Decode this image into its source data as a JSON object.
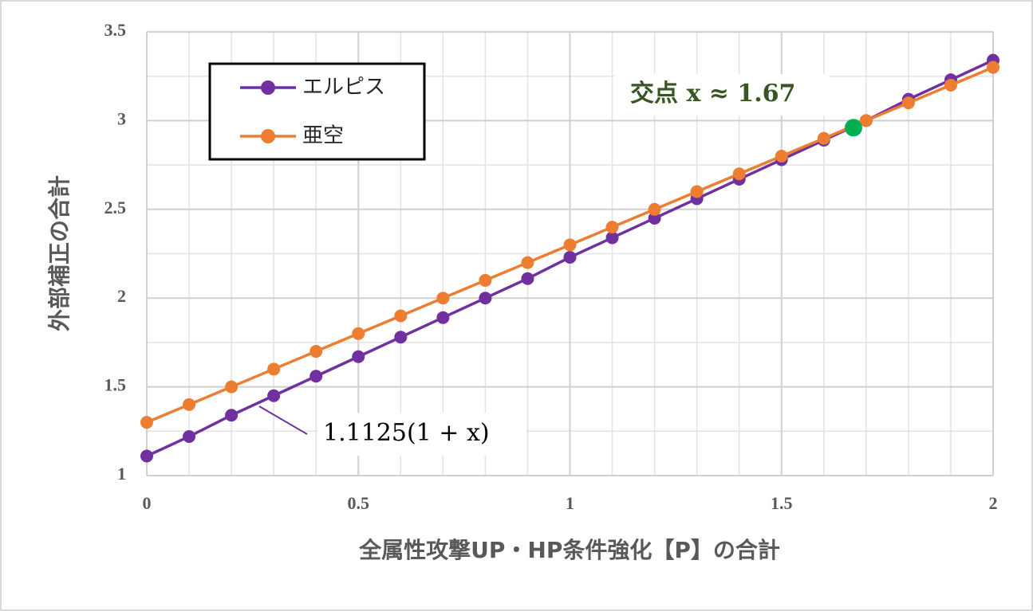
{
  "chart_data": {
    "type": "line",
    "x": [
      0,
      0.1,
      0.2,
      0.3,
      0.4,
      0.5,
      0.6,
      0.7,
      0.8,
      0.9,
      1,
      1.1,
      1.2,
      1.3,
      1.4,
      1.5,
      1.6,
      1.7,
      1.8,
      1.9,
      2
    ],
    "series": [
      {
        "name": "エルピス",
        "color": "#7030a0",
        "values": [
          1.11,
          1.22,
          1.34,
          1.45,
          1.56,
          1.67,
          1.78,
          1.89,
          2.0,
          2.11,
          2.23,
          2.34,
          2.45,
          2.56,
          2.67,
          2.78,
          2.89,
          3.0,
          3.12,
          3.23,
          3.34
        ]
      },
      {
        "name": "亜空",
        "color": "#ed7d31",
        "values": [
          1.3,
          1.4,
          1.5,
          1.6,
          1.7,
          1.8,
          1.9,
          2.0,
          2.1,
          2.2,
          2.3,
          2.4,
          2.5,
          2.6,
          2.7,
          2.8,
          2.9,
          3.0,
          3.1,
          3.2,
          3.3
        ]
      }
    ],
    "xlim": [
      0,
      2
    ],
    "ylim": [
      1,
      3.5
    ],
    "xticks": [
      0,
      0.5,
      1,
      1.5,
      2
    ],
    "yticks": [
      1,
      1.5,
      2,
      2.5,
      3,
      3.5
    ],
    "minor_grid": {
      "x": 0.1,
      "y": 0.25
    },
    "grid": true,
    "legend": "upper left",
    "x_label": "全属性攻撃UP・HP条件強化【P】の合計",
    "y_label": "外部補正の合計",
    "annotations": [
      {
        "text": "1.1125(1 + x)"
      },
      {
        "text": "交点 x ≈ 1.67"
      }
    ],
    "intersection": {
      "x": 1.67,
      "y": 2.96,
      "color": "#00b050"
    }
  }
}
